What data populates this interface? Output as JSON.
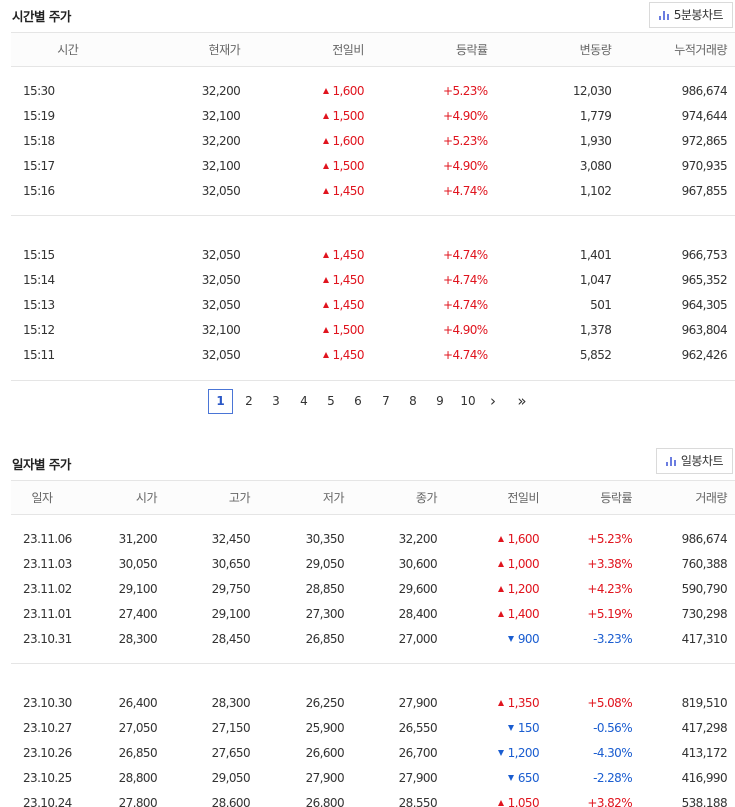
{
  "intraday": {
    "title": "시간별 주가",
    "chart_button": "5분봉차트",
    "headers": [
      "시간",
      "현재가",
      "전일비",
      "등락률",
      "변동량",
      "누적거래량"
    ],
    "rows": [
      [
        "15:30",
        "32,200",
        "1,600",
        "+5.23%",
        "12,030",
        "986,674"
      ],
      [
        "15:19",
        "32,100",
        "1,500",
        "+4.90%",
        "1,779",
        "974,644"
      ],
      [
        "15:18",
        "32,200",
        "1,600",
        "+5.23%",
        "1,930",
        "972,865"
      ],
      [
        "15:17",
        "32,100",
        "1,500",
        "+4.90%",
        "3,080",
        "970,935"
      ],
      [
        "15:16",
        "32,050",
        "1,450",
        "+4.74%",
        "1,102",
        "967,855"
      ],
      [
        "15:15",
        "32,050",
        "1,450",
        "+4.74%",
        "1,401",
        "966,753"
      ],
      [
        "15:14",
        "32,050",
        "1,450",
        "+4.74%",
        "1,047",
        "965,352"
      ],
      [
        "15:13",
        "32,050",
        "1,450",
        "+4.74%",
        "501",
        "964,305"
      ],
      [
        "15:12",
        "32,100",
        "1,500",
        "+4.90%",
        "1,378",
        "963,804"
      ],
      [
        "15:11",
        "32,050",
        "1,450",
        "+4.74%",
        "5,852",
        "962,426"
      ]
    ],
    "directions": [
      "up",
      "up",
      "up",
      "up",
      "up",
      "up",
      "up",
      "up",
      "up",
      "up"
    ]
  },
  "pagination": {
    "current": "1",
    "pages": [
      "2",
      "3",
      "4",
      "5",
      "6",
      "7",
      "8",
      "9",
      "10"
    ],
    "next": "›",
    "last": "»"
  },
  "daily": {
    "title": "일자별 주가",
    "chart_button": "일봉차트",
    "headers": [
      "일자",
      "시가",
      "고가",
      "저가",
      "종가",
      "전일비",
      "등락률",
      "거래량"
    ],
    "rows": [
      [
        "23.11.06",
        "31,200",
        "32,450",
        "30,350",
        "32,200",
        "1,600",
        "+5.23%",
        "986,674"
      ],
      [
        "23.11.03",
        "30,050",
        "30,650",
        "29,050",
        "30,600",
        "1,000",
        "+3.38%",
        "760,388"
      ],
      [
        "23.11.02",
        "29,100",
        "29,750",
        "28,850",
        "29,600",
        "1,200",
        "+4.23%",
        "590,790"
      ],
      [
        "23.11.01",
        "27,400",
        "29,100",
        "27,300",
        "28,400",
        "1,400",
        "+5.19%",
        "730,298"
      ],
      [
        "23.10.31",
        "28,300",
        "28,450",
        "26,850",
        "27,000",
        "900",
        "-3.23%",
        "417,310"
      ],
      [
        "23.10.30",
        "26,400",
        "28,300",
        "26,250",
        "27,900",
        "1,350",
        "+5.08%",
        "819,510"
      ],
      [
        "23.10.27",
        "27,050",
        "27,150",
        "25,900",
        "26,550",
        "150",
        "-0.56%",
        "417,298"
      ],
      [
        "23.10.26",
        "26,850",
        "27,650",
        "26,600",
        "26,700",
        "1,200",
        "-4.30%",
        "413,172"
      ],
      [
        "23.10.25",
        "28,800",
        "29,050",
        "27,900",
        "27,900",
        "650",
        "-2.28%",
        "416,990"
      ],
      [
        "23.10.24",
        "27,800",
        "28,600",
        "26,800",
        "28,550",
        "1,050",
        "+3.82%",
        "538,188"
      ]
    ],
    "directions": [
      "up",
      "up",
      "up",
      "up",
      "down",
      "up",
      "down",
      "down",
      "down",
      "up"
    ]
  },
  "colors": {
    "up": "#e0141e",
    "down": "#1a5dd0",
    "accent": "#4a75d6"
  }
}
